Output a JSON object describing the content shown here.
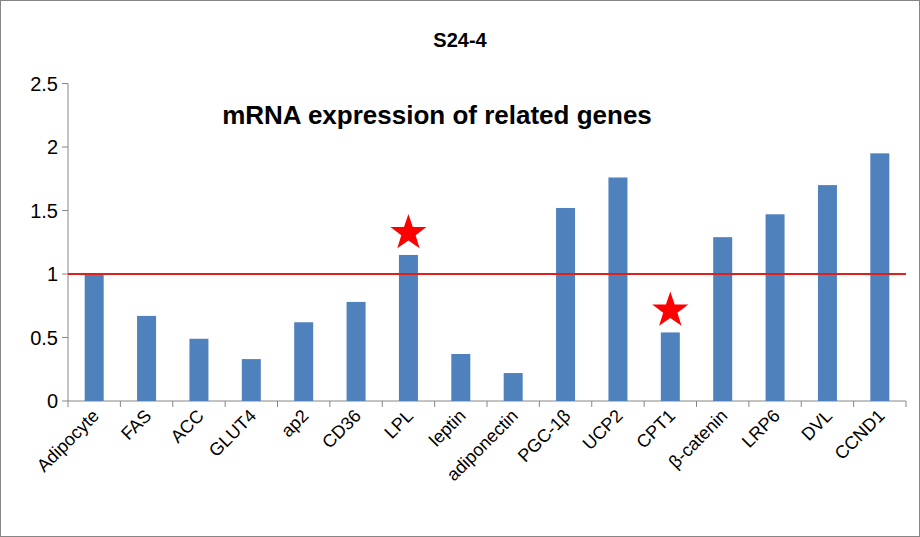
{
  "chart_data": {
    "type": "bar",
    "title": "S24-4",
    "annotations": [
      "mRNA expression of related genes"
    ],
    "categories": [
      "Adipocyte",
      "FAS",
      "ACC",
      "GLUT4",
      "ap2",
      "CD36",
      "LPL",
      "leptin",
      "adiponectin",
      "PGC-1β",
      "UCP2",
      "CPT1",
      "β-catenin",
      "LRP6",
      "DVL",
      "CCND1"
    ],
    "values": [
      1.0,
      0.67,
      0.49,
      0.33,
      0.62,
      0.78,
      1.15,
      0.37,
      0.22,
      1.52,
      1.76,
      0.54,
      1.29,
      1.47,
      1.7,
      1.95
    ],
    "color": "#4f81bd",
    "ylim": [
      0,
      2.5
    ],
    "yticks": [
      0,
      0.5,
      1,
      1.5,
      2,
      2.5
    ],
    "grid": false,
    "reference_line": 1,
    "highlighted": [
      "LPL",
      "CPT1"
    ]
  }
}
